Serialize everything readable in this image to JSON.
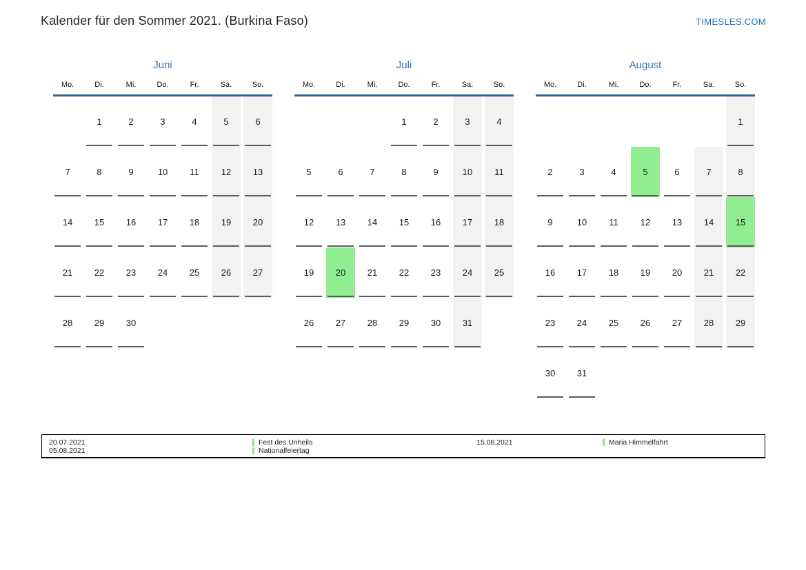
{
  "page": {
    "title": "Kalender für den Sommer 2021. (Burkina Faso)",
    "site_link": "TIMESLES.COM"
  },
  "weekday_headers": [
    "Mo.",
    "Di.",
    "Mi.",
    "Do.",
    "Fr.",
    "Sa.",
    "So."
  ],
  "months": [
    {
      "name": "Juni",
      "weeks": [
        [
          null,
          1,
          2,
          3,
          4,
          5,
          6
        ],
        [
          7,
          8,
          9,
          10,
          11,
          12,
          13
        ],
        [
          14,
          15,
          16,
          17,
          18,
          19,
          20
        ],
        [
          21,
          22,
          23,
          24,
          25,
          26,
          27
        ],
        [
          28,
          29,
          30,
          null,
          null,
          null,
          null
        ]
      ],
      "highlighted_days": []
    },
    {
      "name": "Juli",
      "weeks": [
        [
          null,
          null,
          null,
          1,
          2,
          3,
          4
        ],
        [
          5,
          6,
          7,
          8,
          9,
          10,
          11
        ],
        [
          12,
          13,
          14,
          15,
          16,
          17,
          18
        ],
        [
          19,
          20,
          21,
          22,
          23,
          24,
          25
        ],
        [
          26,
          27,
          28,
          29,
          30,
          31,
          null
        ]
      ],
      "highlighted_days": [
        20
      ]
    },
    {
      "name": "August",
      "weeks": [
        [
          null,
          null,
          null,
          null,
          null,
          null,
          1
        ],
        [
          2,
          3,
          4,
          5,
          6,
          7,
          8
        ],
        [
          9,
          10,
          11,
          12,
          13,
          14,
          15
        ],
        [
          16,
          17,
          18,
          19,
          20,
          21,
          22
        ],
        [
          23,
          24,
          25,
          26,
          27,
          28,
          29
        ],
        [
          30,
          31,
          null,
          null,
          null,
          null,
          null
        ]
      ],
      "highlighted_days": [
        5,
        15
      ]
    }
  ],
  "legend": {
    "groups": [
      {
        "dates": [
          "20.07.2021",
          "05.08.2021"
        ],
        "holidays": [
          "Fest des Unheils",
          "Nationalfeiertag"
        ]
      },
      {
        "dates": [
          "15.08.2021"
        ],
        "holidays": [
          "Maria Himmelfahrt"
        ]
      }
    ]
  },
  "colors": {
    "accent_blue": "#2e74b5",
    "header_line_blue": "#34618f",
    "site_link_blue": "#1e6fc0",
    "weekend_bg": "#f2f2f2",
    "highlight_green": "#90ee90",
    "legend_marker_green": "#7de97d",
    "cell_underline": "#5b5b5b"
  }
}
